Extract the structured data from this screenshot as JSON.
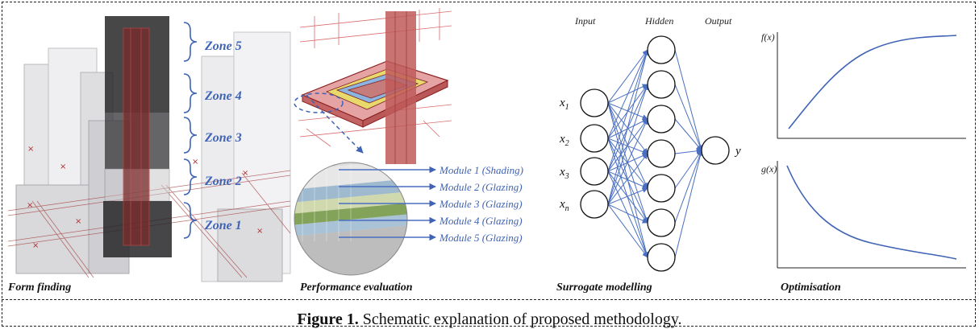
{
  "panels": {
    "form_finding": "Form finding",
    "performance": "Performance evaluation",
    "surrogate": "Surrogate modelling",
    "optimisation": "Optimisation"
  },
  "zones": [
    "Zone 5",
    "Zone 4",
    "Zone 3",
    "Zone 2",
    "Zone 1"
  ],
  "modules": [
    "Module 1 (Shading)",
    "Module 2 (Glazing)",
    "Module 3 (Glazing)",
    "Module 4 (Glazing)",
    "Module 5 (Glazing)"
  ],
  "network": {
    "layers": [
      "Input",
      "Hidden",
      "Output"
    ],
    "inputs": [
      "x",
      "x",
      "x",
      "x"
    ],
    "input_subscripts": [
      "1",
      "2",
      "3",
      "n"
    ],
    "output": "y",
    "hidden_count": 7
  },
  "plots": {
    "top_label": "f(x)",
    "bottom_label": "g(x)"
  },
  "caption": {
    "bold": "Figure 1.",
    "text": "Schematic explanation of proposed methodology."
  },
  "colors": {
    "annotation": "#3f63b5",
    "network": "#4a6fc2",
    "tower": "#8b2b2b"
  }
}
